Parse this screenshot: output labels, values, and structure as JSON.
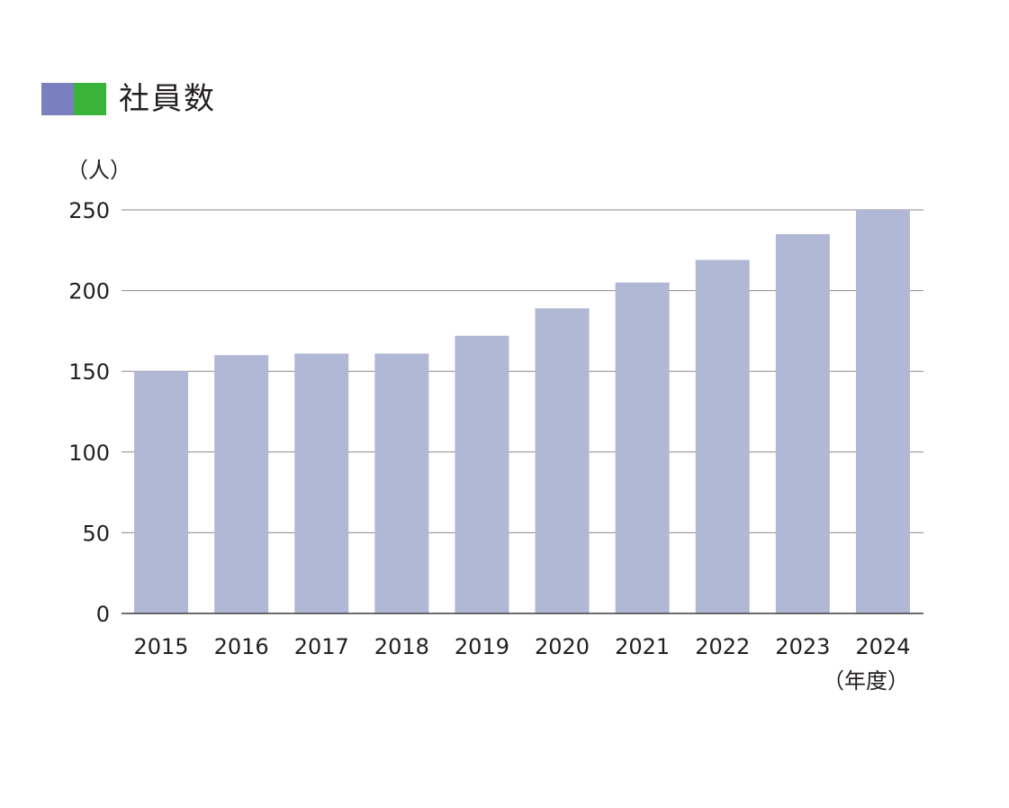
{
  "header": {
    "title": "社員数"
  },
  "colors": {
    "swatch_left": "#7a7fc0",
    "swatch_right": "#3ab33a",
    "bar": "#b1b8d5",
    "grid": "#8a8a8a",
    "axis": "#3d3d3d",
    "text": "#231f20"
  },
  "chart_data": {
    "type": "bar",
    "title": "社員数",
    "ylabel": "（人）",
    "xlabel": "（年度）",
    "categories": [
      "2015",
      "2016",
      "2017",
      "2018",
      "2019",
      "2020",
      "2021",
      "2022",
      "2023",
      "2024"
    ],
    "values": [
      150,
      160,
      161,
      161,
      172,
      189,
      205,
      219,
      235,
      250
    ],
    "ylim": [
      0,
      250
    ],
    "yticks": [
      0,
      50,
      100,
      150,
      200,
      250
    ],
    "grid": true,
    "legend": "none"
  }
}
